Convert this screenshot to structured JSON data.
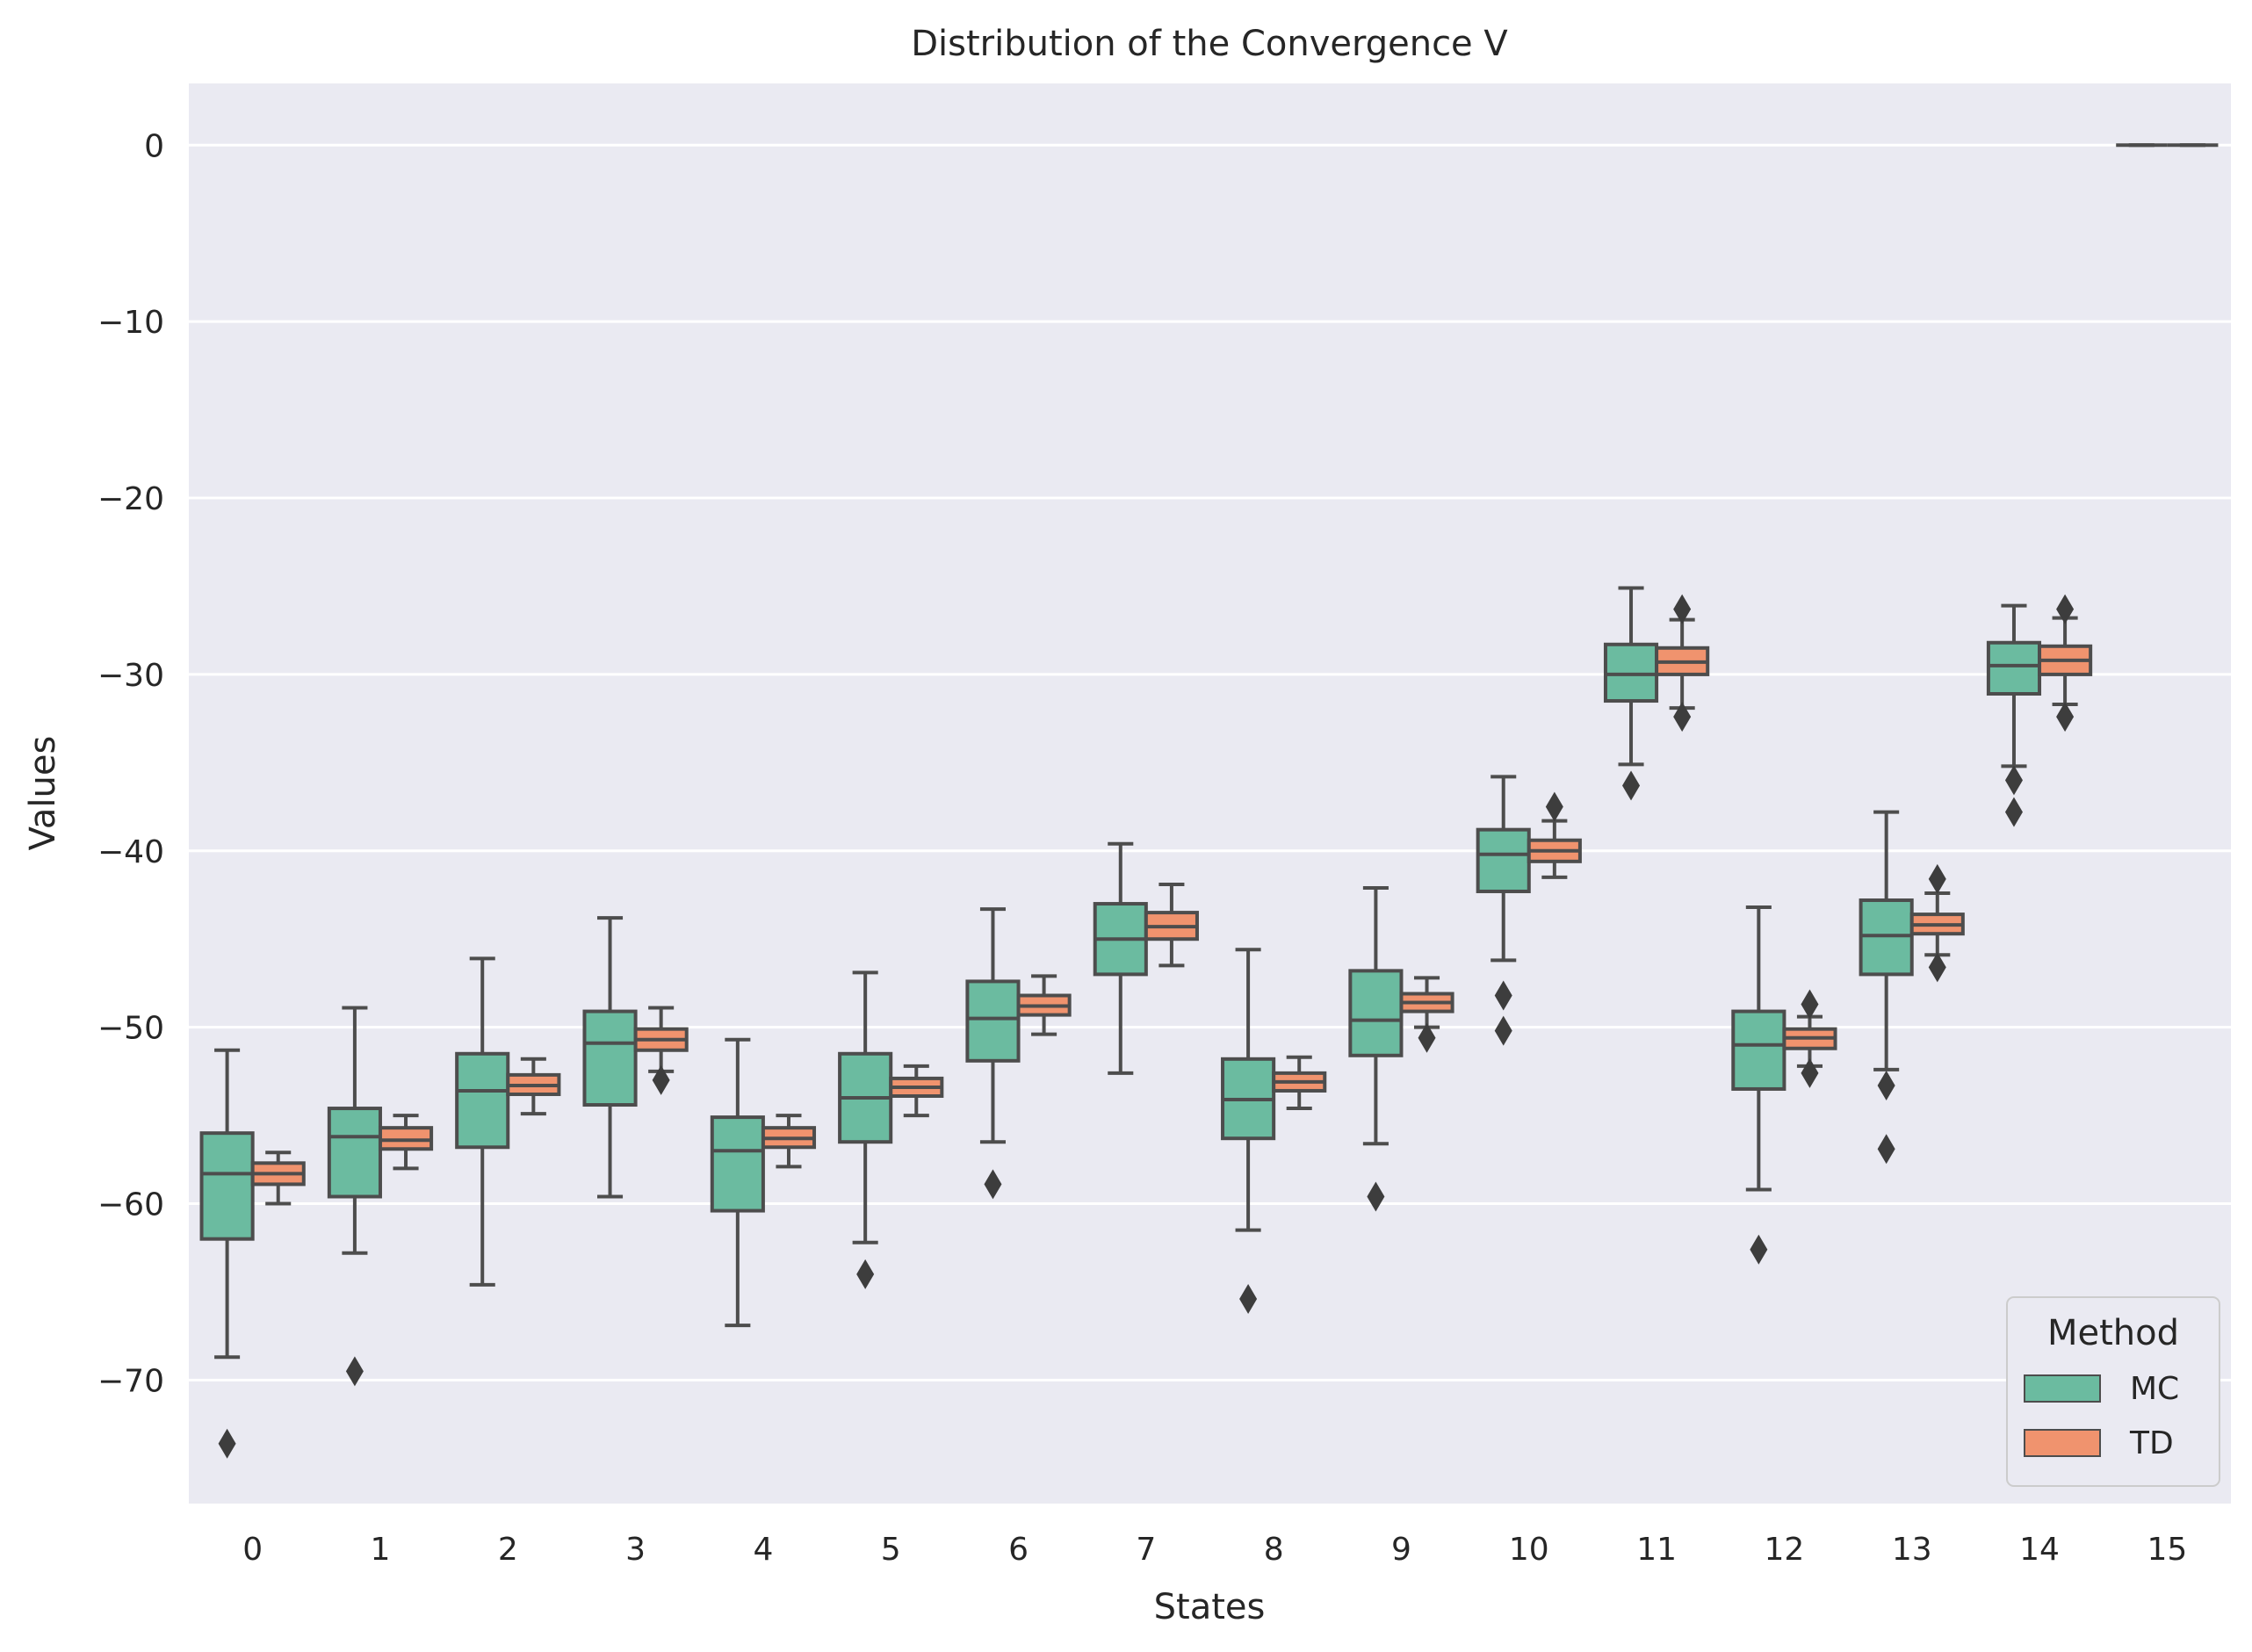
{
  "chart_data": {
    "type": "boxplot",
    "title": "Distribution of the Convergence V",
    "xlabel": "States",
    "ylabel": "Values",
    "categories": [
      "0",
      "1",
      "2",
      "3",
      "4",
      "5",
      "6",
      "7",
      "8",
      "9",
      "10",
      "11",
      "12",
      "13",
      "14",
      "15"
    ],
    "ylim": [
      -77,
      3.5
    ],
    "yticks": [
      0,
      -10,
      -20,
      -30,
      -40,
      -50,
      -60,
      -70
    ],
    "ytick_labels": [
      "0",
      "−10",
      "−20",
      "−30",
      "−40",
      "−50",
      "−60",
      "−70"
    ],
    "grid": true,
    "legend": {
      "title": "Method",
      "position": "bottom-right"
    },
    "series": [
      {
        "name": "MC",
        "color": "#6bbba0",
        "boxes": [
          {
            "whislo": -68.7,
            "q1": -62.0,
            "med": -58.3,
            "q3": -56.0,
            "whishi": -51.3,
            "fliers": [
              -73.6
            ]
          },
          {
            "whislo": -62.8,
            "q1": -59.6,
            "med": -56.2,
            "q3": -54.6,
            "whishi": -48.9,
            "fliers": [
              -69.5
            ]
          },
          {
            "whislo": -64.6,
            "q1": -56.8,
            "med": -53.6,
            "q3": -51.5,
            "whishi": -46.1,
            "fliers": []
          },
          {
            "whislo": -59.6,
            "q1": -54.4,
            "med": -50.9,
            "q3": -49.1,
            "whishi": -43.8,
            "fliers": []
          },
          {
            "whislo": -66.9,
            "q1": -60.4,
            "med": -57.0,
            "q3": -55.1,
            "whishi": -50.7,
            "fliers": []
          },
          {
            "whislo": -62.2,
            "q1": -56.5,
            "med": -54.0,
            "q3": -51.5,
            "whishi": -46.9,
            "fliers": [
              -64.0
            ]
          },
          {
            "whislo": -56.5,
            "q1": -51.9,
            "med": -49.5,
            "q3": -47.4,
            "whishi": -43.3,
            "fliers": [
              -58.9
            ]
          },
          {
            "whislo": -52.6,
            "q1": -47.0,
            "med": -45.0,
            "q3": -43.0,
            "whishi": -39.6,
            "fliers": []
          },
          {
            "whislo": -61.5,
            "q1": -56.3,
            "med": -54.1,
            "q3": -51.8,
            "whishi": -45.6,
            "fliers": [
              -65.4
            ]
          },
          {
            "whislo": -56.6,
            "q1": -51.6,
            "med": -49.6,
            "q3": -46.8,
            "whishi": -42.1,
            "fliers": [
              -59.6
            ]
          },
          {
            "whislo": -46.2,
            "q1": -42.3,
            "med": -40.2,
            "q3": -38.8,
            "whishi": -35.8,
            "fliers": [
              -48.2,
              -50.2
            ]
          },
          {
            "whislo": -35.1,
            "q1": -31.5,
            "med": -30.0,
            "q3": -28.3,
            "whishi": -25.1,
            "fliers": [
              -36.3
            ]
          },
          {
            "whislo": -59.2,
            "q1": -53.5,
            "med": -51.0,
            "q3": -49.1,
            "whishi": -43.2,
            "fliers": [
              -62.6
            ]
          },
          {
            "whislo": -52.4,
            "q1": -47.0,
            "med": -44.8,
            "q3": -42.8,
            "whishi": -37.8,
            "fliers": [
              -53.3,
              -56.9
            ]
          },
          {
            "whislo": -35.2,
            "q1": -31.1,
            "med": -29.5,
            "q3": -28.2,
            "whishi": -26.1,
            "fliers": [
              -36.0,
              -37.8
            ]
          },
          {
            "whislo": 0,
            "q1": 0,
            "med": 0,
            "q3": 0,
            "whishi": 0,
            "fliers": []
          }
        ]
      },
      {
        "name": "TD",
        "color": "#f0936e",
        "boxes": [
          {
            "whislo": -60.0,
            "q1": -58.9,
            "med": -58.3,
            "q3": -57.7,
            "whishi": -57.1,
            "fliers": []
          },
          {
            "whislo": -58.0,
            "q1": -56.9,
            "med": -56.4,
            "q3": -55.7,
            "whishi": -55.0,
            "fliers": []
          },
          {
            "whislo": -54.9,
            "q1": -53.8,
            "med": -53.3,
            "q3": -52.7,
            "whishi": -51.8,
            "fliers": []
          },
          {
            "whislo": -52.5,
            "q1": -51.3,
            "med": -50.7,
            "q3": -50.1,
            "whishi": -48.9,
            "fliers": [
              -53.0
            ]
          },
          {
            "whislo": -57.9,
            "q1": -56.8,
            "med": -56.3,
            "q3": -55.7,
            "whishi": -55.0,
            "fliers": []
          },
          {
            "whislo": -55.0,
            "q1": -53.9,
            "med": -53.4,
            "q3": -52.9,
            "whishi": -52.2,
            "fliers": []
          },
          {
            "whislo": -50.4,
            "q1": -49.3,
            "med": -48.8,
            "q3": -48.2,
            "whishi": -47.1,
            "fliers": []
          },
          {
            "whislo": -46.5,
            "q1": -45.0,
            "med": -44.3,
            "q3": -43.5,
            "whishi": -41.9,
            "fliers": []
          },
          {
            "whislo": -54.6,
            "q1": -53.6,
            "med": -53.1,
            "q3": -52.6,
            "whishi": -51.7,
            "fliers": []
          },
          {
            "whislo": -50.0,
            "q1": -49.1,
            "med": -48.6,
            "q3": -48.1,
            "whishi": -47.2,
            "fliers": [
              -50.6
            ]
          },
          {
            "whislo": -41.5,
            "q1": -40.6,
            "med": -40.0,
            "q3": -39.4,
            "whishi": -38.3,
            "fliers": [
              -37.5
            ]
          },
          {
            "whislo": -31.9,
            "q1": -30.0,
            "med": -29.3,
            "q3": -28.5,
            "whishi": -26.9,
            "fliers": [
              -32.4,
              -26.3
            ]
          },
          {
            "whislo": -52.2,
            "q1": -51.2,
            "med": -50.6,
            "q3": -50.1,
            "whishi": -49.4,
            "fliers": [
              -52.6,
              -48.7
            ]
          },
          {
            "whislo": -45.9,
            "q1": -44.7,
            "med": -44.2,
            "q3": -43.6,
            "whishi": -42.4,
            "fliers": [
              -46.6,
              -41.6
            ]
          },
          {
            "whislo": -31.7,
            "q1": -30.0,
            "med": -29.2,
            "q3": -28.4,
            "whishi": -26.8,
            "fliers": [
              -32.4,
              -26.3
            ]
          },
          {
            "whislo": 0,
            "q1": 0,
            "med": 0,
            "q3": 0,
            "whishi": 0,
            "fliers": []
          }
        ]
      }
    ]
  }
}
